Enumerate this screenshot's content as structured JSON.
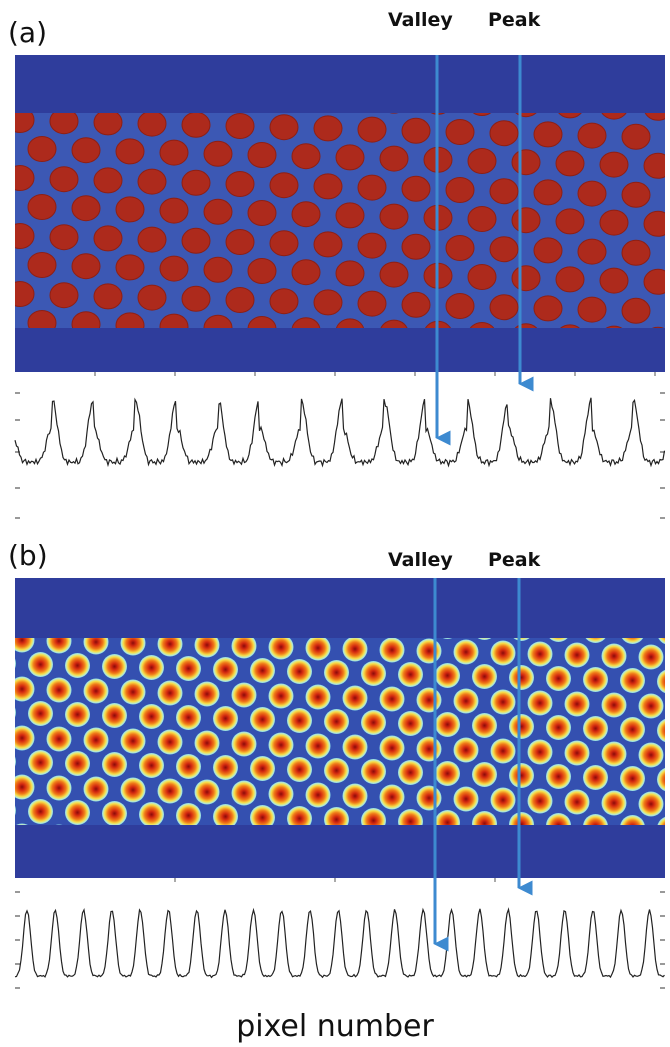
{
  "panels": [
    {
      "label": "(a)",
      "valley": "Valley",
      "peak": "Peak"
    },
    {
      "label": "(b)",
      "valley": "Valley",
      "peak": "Peak"
    }
  ],
  "x_axis_label": "pixel number"
}
